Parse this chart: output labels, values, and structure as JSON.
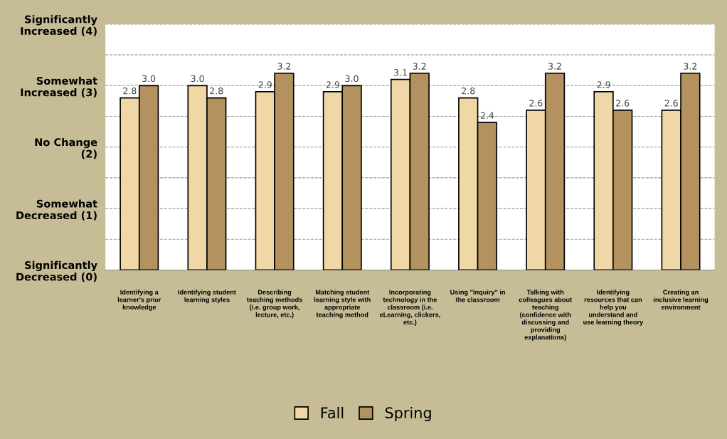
{
  "chart_data": {
    "type": "bar",
    "categories": [
      "Identifying a\nlearner's prior\nknowledge",
      "Identifying student\nlearning styles",
      "Describing\nteaching methods\n(i.e. group work,\nlecture, etc.)",
      "Matching student\nlearning style with\nappropriate\nteaching method",
      "Incorporating\ntechnology in the\nclassroom (i.e.\neLearning, clickers,\netc.)",
      "Using \"Inquiry\" in\nthe classroom",
      "Talking with\ncolleagues about\nteaching\n(confidence with\ndiscussing and\nproviding\nexplanations)",
      "Identifying\nresources that can\nhelp you\nunderstand and\nuse learning theory",
      "Creating an\ninclusive learning\nenvironment"
    ],
    "series": [
      {
        "name": "Fall",
        "color": "#efd8a6",
        "values": [
          2.8,
          3.0,
          2.9,
          2.9,
          3.1,
          2.8,
          2.6,
          2.9,
          2.6
        ],
        "value_labels": [
          "2.8",
          "3.0",
          "2.9",
          "2.9",
          "3.1",
          "2.8",
          "2.6",
          "2.9",
          "2.6"
        ]
      },
      {
        "name": "Spring",
        "color": "#b3925f",
        "values": [
          3.0,
          2.8,
          3.2,
          3.0,
          3.2,
          2.4,
          3.2,
          2.6,
          3.2
        ],
        "value_labels": [
          "3.0",
          "2.8",
          "3.2",
          "3.0",
          "3.2",
          "2.4",
          "3.2",
          "2.6",
          "3.2"
        ]
      }
    ],
    "ylim": [
      0,
      4
    ],
    "yticks": [
      {
        "value": 0,
        "label": "Significantly\nDecreased (0)"
      },
      {
        "value": 0.5,
        "label": null
      },
      {
        "value": 1,
        "label": "Somewhat\nDecreased (1)"
      },
      {
        "value": 1.5,
        "label": null
      },
      {
        "value": 2,
        "label": "No Change\n(2)"
      },
      {
        "value": 2.5,
        "label": null
      },
      {
        "value": 3,
        "label": "Somewhat\nIncreased (3)"
      },
      {
        "value": 3.5,
        "label": null
      },
      {
        "value": 4,
        "label": "Significantly\nIncreased (4)"
      }
    ],
    "grid": "y",
    "legend": "bottom"
  }
}
